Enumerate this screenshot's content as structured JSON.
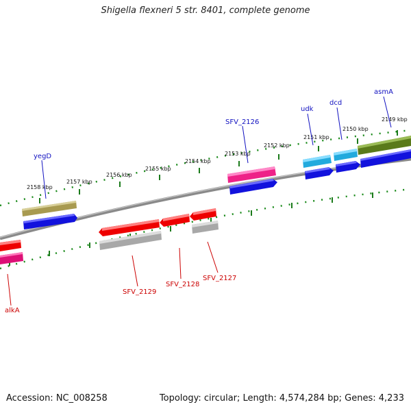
{
  "title": "Shigella flexneri 5 str. 8401, complete genome",
  "footer": {
    "accession": "Accession: NC_008258",
    "summary": "Topology: circular; Length: 4,574,284 bp; Genes: 4,233"
  },
  "colors": {
    "backbone": "#7a7a7a",
    "ruler": "#1a7a1a",
    "forward_label": "#1010c0",
    "reverse_label": "#cc0000",
    "cds_blue": "#1010dd",
    "cds_red": "#ee0000",
    "cds_pink": "#ee2288",
    "cds_cyan": "#22aadd",
    "cds_olive": "#5a7a1a",
    "cds_khaki": "#a89a50",
    "cds_gray": "#a8a8a8"
  },
  "ruler": {
    "ticks": [
      "2149 kbp",
      "2150 kbp",
      "2151 kbp",
      "2152 kbp",
      "2153 kbp",
      "2154 kbp",
      "2155 kbp",
      "2156 kbp",
      "2157 kbp",
      "2158 kbp"
    ]
  },
  "gene_labels": {
    "forward": [
      "asmA",
      "dcd",
      "udk",
      "SFV_2126",
      "yegD"
    ],
    "reverse": [
      "SFV_2127",
      "SFV_2128",
      "SFV_2129",
      "alkA"
    ]
  }
}
